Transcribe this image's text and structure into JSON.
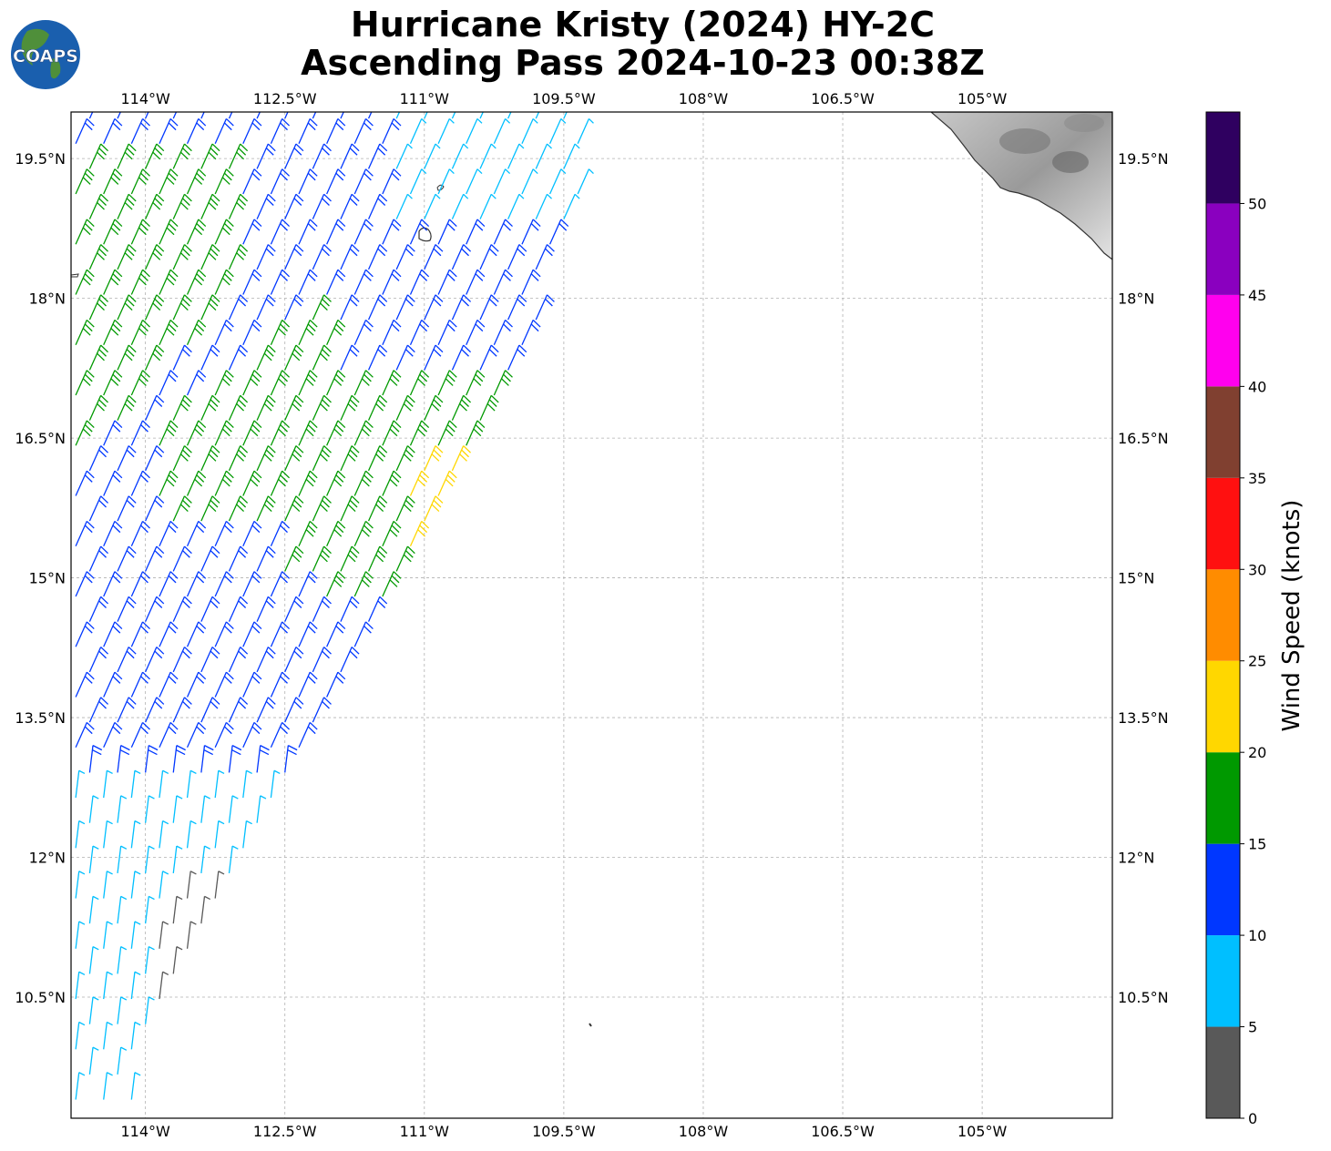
{
  "title": {
    "line1": "Hurricane Kristy (2024) HY-2C",
    "line2": "Ascending Pass 2024-10-23 00:38Z"
  },
  "logo": {
    "text": "COAPS",
    "icon": "globe-logo-icon"
  },
  "map": {
    "lon_range": [
      -114.8,
      -103.6
    ],
    "lat_range": [
      9.2,
      20.0
    ],
    "lon_ticks": [
      {
        "value": -114,
        "label": "114°W"
      },
      {
        "value": -112.5,
        "label": "112.5°W"
      },
      {
        "value": -111,
        "label": "111°W"
      },
      {
        "value": -109.5,
        "label": "109.5°W"
      },
      {
        "value": -108,
        "label": "108°W"
      },
      {
        "value": -106.5,
        "label": "106.5°W"
      },
      {
        "value": -105,
        "label": "105°W"
      }
    ],
    "lat_ticks": [
      {
        "value": 19.5,
        "label": "19.5°N"
      },
      {
        "value": 18,
        "label": "18°N"
      },
      {
        "value": 16.5,
        "label": "16.5°N"
      },
      {
        "value": 15,
        "label": "15°N"
      },
      {
        "value": 13.5,
        "label": "13.5°N"
      },
      {
        "value": 12,
        "label": "12°N"
      },
      {
        "value": 10.5,
        "label": "10.5°N"
      }
    ],
    "grid": true,
    "land": "Mexico coastline (top-right, grayscale topography)",
    "islands": [
      "Isla Socorro",
      "Clarion",
      "Roca Partida"
    ]
  },
  "colorbar": {
    "label": "Wind Speed (knots)",
    "bins": [
      {
        "min": 0,
        "max": 5,
        "color": "#595959"
      },
      {
        "min": 5,
        "max": 10,
        "color": "#00bfff"
      },
      {
        "min": 10,
        "max": 15,
        "color": "#0037ff"
      },
      {
        "min": 15,
        "max": 20,
        "color": "#009900"
      },
      {
        "min": 20,
        "max": 25,
        "color": "#ffd700"
      },
      {
        "min": 25,
        "max": 30,
        "color": "#ff8c00"
      },
      {
        "min": 30,
        "max": 35,
        "color": "#ff1010"
      },
      {
        "min": 35,
        "max": 40,
        "color": "#804030"
      },
      {
        "min": 40,
        "max": 45,
        "color": "#ff00ee"
      },
      {
        "min": 45,
        "max": 50,
        "color": "#8a00bf"
      },
      {
        "min": 50,
        "max": 55,
        "color": "#2f0060"
      }
    ],
    "tick_labels": [
      "0",
      "5",
      "10",
      "15",
      "20",
      "25",
      "30",
      "35",
      "40",
      "45",
      "50"
    ]
  }
}
